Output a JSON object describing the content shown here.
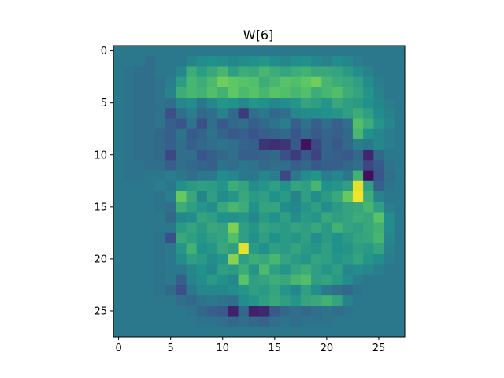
{
  "chart_data": {
    "type": "heatmap",
    "title": "W[6]",
    "xlabel": "",
    "ylabel": "",
    "colormap": "viridis",
    "rows": 28,
    "cols": 28,
    "xlim": [
      -0.5,
      27.5
    ],
    "ylim": [
      27.5,
      -0.5
    ],
    "xticks": [
      0,
      5,
      10,
      15,
      20,
      25
    ],
    "yticks": [
      0,
      5,
      10,
      15,
      20,
      25
    ],
    "grid": false,
    "value_range": [
      0,
      1
    ],
    "values": [
      [
        0.4,
        0.4,
        0.4,
        0.4,
        0.4,
        0.4,
        0.4,
        0.4,
        0.4,
        0.4,
        0.4,
        0.4,
        0.4,
        0.4,
        0.4,
        0.4,
        0.4,
        0.4,
        0.4,
        0.4,
        0.4,
        0.4,
        0.4,
        0.4,
        0.4,
        0.4,
        0.4,
        0.4
      ],
      [
        0.4,
        0.4,
        0.4,
        0.36,
        0.4,
        0.4,
        0.4,
        0.45,
        0.48,
        0.5,
        0.48,
        0.46,
        0.48,
        0.5,
        0.52,
        0.48,
        0.46,
        0.48,
        0.5,
        0.46,
        0.44,
        0.48,
        0.46,
        0.42,
        0.4,
        0.4,
        0.4,
        0.4
      ],
      [
        0.4,
        0.38,
        0.36,
        0.36,
        0.4,
        0.4,
        0.46,
        0.62,
        0.55,
        0.6,
        0.66,
        0.56,
        0.62,
        0.6,
        0.66,
        0.62,
        0.58,
        0.62,
        0.64,
        0.6,
        0.6,
        0.58,
        0.54,
        0.48,
        0.44,
        0.4,
        0.4,
        0.4
      ],
      [
        0.4,
        0.38,
        0.36,
        0.36,
        0.38,
        0.42,
        0.55,
        0.66,
        0.62,
        0.68,
        0.78,
        0.74,
        0.72,
        0.7,
        0.62,
        0.66,
        0.72,
        0.7,
        0.74,
        0.78,
        0.66,
        0.62,
        0.6,
        0.56,
        0.48,
        0.42,
        0.4,
        0.4
      ],
      [
        0.4,
        0.38,
        0.36,
        0.36,
        0.38,
        0.44,
        0.62,
        0.66,
        0.64,
        0.7,
        0.64,
        0.74,
        0.68,
        0.72,
        0.66,
        0.72,
        0.7,
        0.66,
        0.7,
        0.62,
        0.66,
        0.7,
        0.62,
        0.58,
        0.52,
        0.44,
        0.4,
        0.4
      ],
      [
        0.4,
        0.38,
        0.36,
        0.36,
        0.38,
        0.36,
        0.46,
        0.48,
        0.4,
        0.46,
        0.52,
        0.5,
        0.46,
        0.52,
        0.5,
        0.46,
        0.48,
        0.52,
        0.58,
        0.56,
        0.52,
        0.6,
        0.56,
        0.54,
        0.5,
        0.46,
        0.42,
        0.4
      ],
      [
        0.4,
        0.38,
        0.36,
        0.36,
        0.38,
        0.24,
        0.36,
        0.42,
        0.34,
        0.36,
        0.44,
        0.34,
        0.18,
        0.36,
        0.4,
        0.34,
        0.36,
        0.46,
        0.48,
        0.48,
        0.5,
        0.52,
        0.56,
        0.62,
        0.56,
        0.48,
        0.44,
        0.4
      ],
      [
        0.4,
        0.38,
        0.36,
        0.36,
        0.38,
        0.3,
        0.26,
        0.38,
        0.24,
        0.36,
        0.28,
        0.34,
        0.36,
        0.3,
        0.34,
        0.38,
        0.42,
        0.3,
        0.38,
        0.3,
        0.36,
        0.3,
        0.36,
        0.7,
        0.62,
        0.52,
        0.46,
        0.4
      ],
      [
        0.4,
        0.38,
        0.36,
        0.36,
        0.34,
        0.3,
        0.38,
        0.28,
        0.32,
        0.38,
        0.32,
        0.28,
        0.3,
        0.26,
        0.3,
        0.32,
        0.34,
        0.26,
        0.34,
        0.28,
        0.32,
        0.3,
        0.34,
        0.66,
        0.5,
        0.46,
        0.42,
        0.4
      ],
      [
        0.4,
        0.38,
        0.36,
        0.36,
        0.34,
        0.3,
        0.36,
        0.3,
        0.34,
        0.36,
        0.38,
        0.36,
        0.32,
        0.3,
        0.16,
        0.14,
        0.16,
        0.28,
        0.05,
        0.22,
        0.32,
        0.28,
        0.34,
        0.42,
        0.4,
        0.46,
        0.42,
        0.4
      ],
      [
        0.4,
        0.38,
        0.36,
        0.36,
        0.34,
        0.22,
        0.36,
        0.36,
        0.26,
        0.3,
        0.34,
        0.36,
        0.3,
        0.3,
        0.32,
        0.34,
        0.24,
        0.18,
        0.28,
        0.2,
        0.32,
        0.3,
        0.28,
        0.34,
        0.12,
        0.34,
        0.4,
        0.4
      ],
      [
        0.4,
        0.38,
        0.38,
        0.36,
        0.36,
        0.3,
        0.36,
        0.34,
        0.32,
        0.3,
        0.38,
        0.36,
        0.4,
        0.38,
        0.34,
        0.36,
        0.36,
        0.3,
        0.34,
        0.28,
        0.3,
        0.3,
        0.34,
        0.36,
        0.22,
        0.28,
        0.38,
        0.4
      ],
      [
        0.4,
        0.38,
        0.38,
        0.4,
        0.4,
        0.42,
        0.4,
        0.36,
        0.4,
        0.4,
        0.48,
        0.46,
        0.4,
        0.4,
        0.46,
        0.42,
        0.22,
        0.4,
        0.48,
        0.52,
        0.42,
        0.46,
        0.4,
        0.64,
        0.04,
        0.26,
        0.36,
        0.4
      ],
      [
        0.4,
        0.4,
        0.4,
        0.4,
        0.42,
        0.4,
        0.5,
        0.54,
        0.56,
        0.55,
        0.52,
        0.62,
        0.58,
        0.48,
        0.52,
        0.56,
        0.5,
        0.58,
        0.56,
        0.66,
        0.5,
        0.52,
        0.56,
        0.96,
        0.56,
        0.3,
        0.38,
        0.4
      ],
      [
        0.4,
        0.4,
        0.4,
        0.4,
        0.38,
        0.42,
        0.76,
        0.6,
        0.46,
        0.56,
        0.48,
        0.52,
        0.6,
        0.54,
        0.56,
        0.5,
        0.54,
        0.44,
        0.56,
        0.48,
        0.54,
        0.6,
        0.76,
        0.98,
        0.62,
        0.44,
        0.4,
        0.4
      ],
      [
        0.4,
        0.4,
        0.4,
        0.4,
        0.38,
        0.36,
        0.62,
        0.56,
        0.52,
        0.48,
        0.6,
        0.66,
        0.62,
        0.5,
        0.58,
        0.58,
        0.48,
        0.46,
        0.52,
        0.56,
        0.48,
        0.54,
        0.58,
        0.6,
        0.66,
        0.56,
        0.42,
        0.4
      ],
      [
        0.4,
        0.4,
        0.4,
        0.4,
        0.4,
        0.34,
        0.46,
        0.48,
        0.58,
        0.56,
        0.5,
        0.5,
        0.52,
        0.46,
        0.54,
        0.5,
        0.56,
        0.48,
        0.54,
        0.52,
        0.6,
        0.56,
        0.58,
        0.62,
        0.6,
        0.72,
        0.48,
        0.4
      ],
      [
        0.4,
        0.4,
        0.4,
        0.4,
        0.4,
        0.4,
        0.54,
        0.58,
        0.54,
        0.6,
        0.58,
        0.8,
        0.56,
        0.52,
        0.58,
        0.56,
        0.54,
        0.58,
        0.56,
        0.6,
        0.54,
        0.64,
        0.58,
        0.56,
        0.6,
        0.64,
        0.48,
        0.4
      ],
      [
        0.4,
        0.4,
        0.4,
        0.4,
        0.38,
        0.24,
        0.6,
        0.56,
        0.52,
        0.56,
        0.58,
        0.7,
        0.56,
        0.5,
        0.56,
        0.5,
        0.54,
        0.52,
        0.56,
        0.48,
        0.54,
        0.5,
        0.54,
        0.58,
        0.6,
        0.66,
        0.46,
        0.4
      ],
      [
        0.4,
        0.4,
        0.4,
        0.4,
        0.38,
        0.4,
        0.52,
        0.64,
        0.5,
        0.52,
        0.6,
        0.56,
        0.96,
        0.54,
        0.5,
        0.56,
        0.54,
        0.58,
        0.54,
        0.52,
        0.56,
        0.5,
        0.52,
        0.56,
        0.54,
        0.58,
        0.44,
        0.4
      ],
      [
        0.4,
        0.4,
        0.4,
        0.4,
        0.38,
        0.4,
        0.48,
        0.56,
        0.54,
        0.48,
        0.52,
        0.82,
        0.56,
        0.62,
        0.6,
        0.66,
        0.58,
        0.54,
        0.52,
        0.58,
        0.56,
        0.52,
        0.54,
        0.58,
        0.52,
        0.48,
        0.42,
        0.4
      ],
      [
        0.4,
        0.4,
        0.4,
        0.4,
        0.38,
        0.4,
        0.4,
        0.46,
        0.5,
        0.46,
        0.56,
        0.54,
        0.62,
        0.52,
        0.68,
        0.56,
        0.52,
        0.58,
        0.62,
        0.56,
        0.52,
        0.56,
        0.46,
        0.48,
        0.46,
        0.42,
        0.4,
        0.4
      ],
      [
        0.4,
        0.4,
        0.4,
        0.4,
        0.38,
        0.4,
        0.3,
        0.44,
        0.48,
        0.54,
        0.5,
        0.46,
        0.72,
        0.56,
        0.58,
        0.62,
        0.6,
        0.66,
        0.7,
        0.56,
        0.58,
        0.54,
        0.48,
        0.42,
        0.4,
        0.4,
        0.4,
        0.4
      ],
      [
        0.4,
        0.4,
        0.4,
        0.4,
        0.38,
        0.34,
        0.24,
        0.4,
        0.46,
        0.46,
        0.46,
        0.48,
        0.52,
        0.56,
        0.54,
        0.58,
        0.52,
        0.46,
        0.56,
        0.48,
        0.4,
        0.36,
        0.34,
        0.38,
        0.4,
        0.4,
        0.4,
        0.4
      ],
      [
        0.4,
        0.4,
        0.4,
        0.4,
        0.4,
        0.4,
        0.36,
        0.34,
        0.38,
        0.4,
        0.38,
        0.36,
        0.48,
        0.52,
        0.56,
        0.6,
        0.56,
        0.52,
        0.58,
        0.6,
        0.64,
        0.58,
        0.44,
        0.4,
        0.4,
        0.4,
        0.4,
        0.4
      ],
      [
        0.4,
        0.4,
        0.4,
        0.4,
        0.4,
        0.4,
        0.4,
        0.38,
        0.34,
        0.3,
        0.28,
        0.1,
        0.34,
        0.1,
        0.12,
        0.28,
        0.34,
        0.36,
        0.34,
        0.36,
        0.38,
        0.36,
        0.38,
        0.4,
        0.4,
        0.4,
        0.4,
        0.4
      ],
      [
        0.4,
        0.4,
        0.4,
        0.4,
        0.4,
        0.4,
        0.4,
        0.4,
        0.38,
        0.38,
        0.36,
        0.34,
        0.36,
        0.34,
        0.32,
        0.36,
        0.38,
        0.36,
        0.38,
        0.38,
        0.38,
        0.4,
        0.4,
        0.4,
        0.4,
        0.4,
        0.4,
        0.4
      ],
      [
        0.4,
        0.4,
        0.4,
        0.4,
        0.4,
        0.4,
        0.4,
        0.4,
        0.4,
        0.4,
        0.4,
        0.4,
        0.4,
        0.4,
        0.4,
        0.4,
        0.4,
        0.4,
        0.4,
        0.4,
        0.4,
        0.4,
        0.4,
        0.4,
        0.4,
        0.4,
        0.4,
        0.4
      ]
    ]
  }
}
